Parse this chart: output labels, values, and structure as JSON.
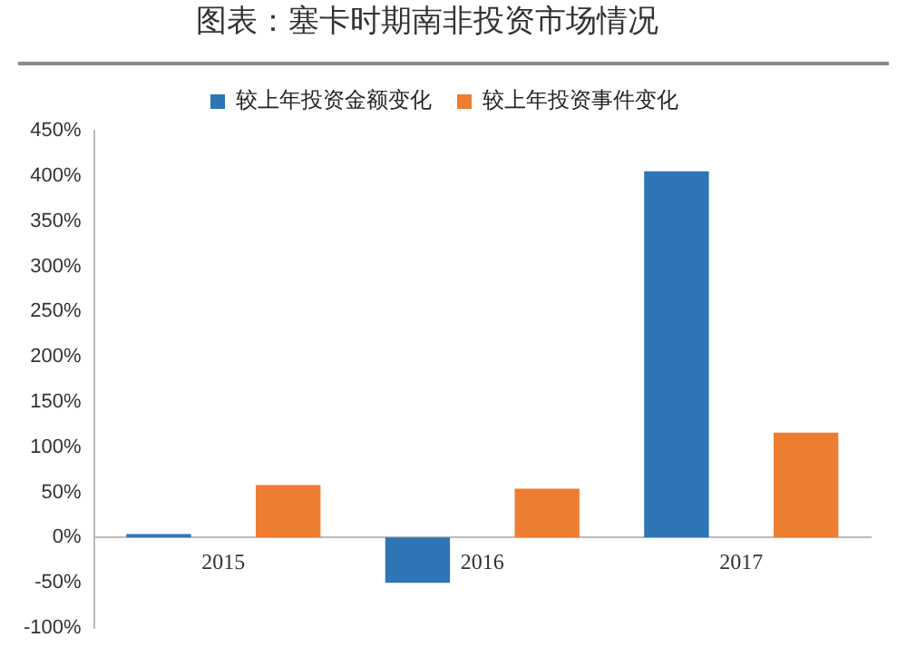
{
  "chart_data": {
    "type": "bar",
    "title": "图表：塞卡时期南非投资市场情况",
    "categories": [
      "2015",
      "2016",
      "2017"
    ],
    "series": [
      {
        "name": "较上年投资金额变化",
        "color": "#2e75b6",
        "values": [
          4,
          -50,
          405
        ]
      },
      {
        "name": "较上年投资事件变化",
        "color": "#ed7d31",
        "values": [
          58,
          54,
          116
        ]
      }
    ],
    "ylim": [
      -100,
      450
    ],
    "yticks": [
      {
        "value": -100,
        "label": "-100%"
      },
      {
        "value": -50,
        "label": "-50%"
      },
      {
        "value": 0,
        "label": "0%"
      },
      {
        "value": 50,
        "label": "50%"
      },
      {
        "value": 100,
        "label": "100%"
      },
      {
        "value": 150,
        "label": "150%"
      },
      {
        "value": 200,
        "label": "200%"
      },
      {
        "value": 250,
        "label": "250%"
      },
      {
        "value": 300,
        "label": "300%"
      },
      {
        "value": 350,
        "label": "350%"
      },
      {
        "value": 400,
        "label": "400%"
      },
      {
        "value": 450,
        "label": "450%"
      }
    ],
    "grid": false,
    "legend": "top"
  }
}
